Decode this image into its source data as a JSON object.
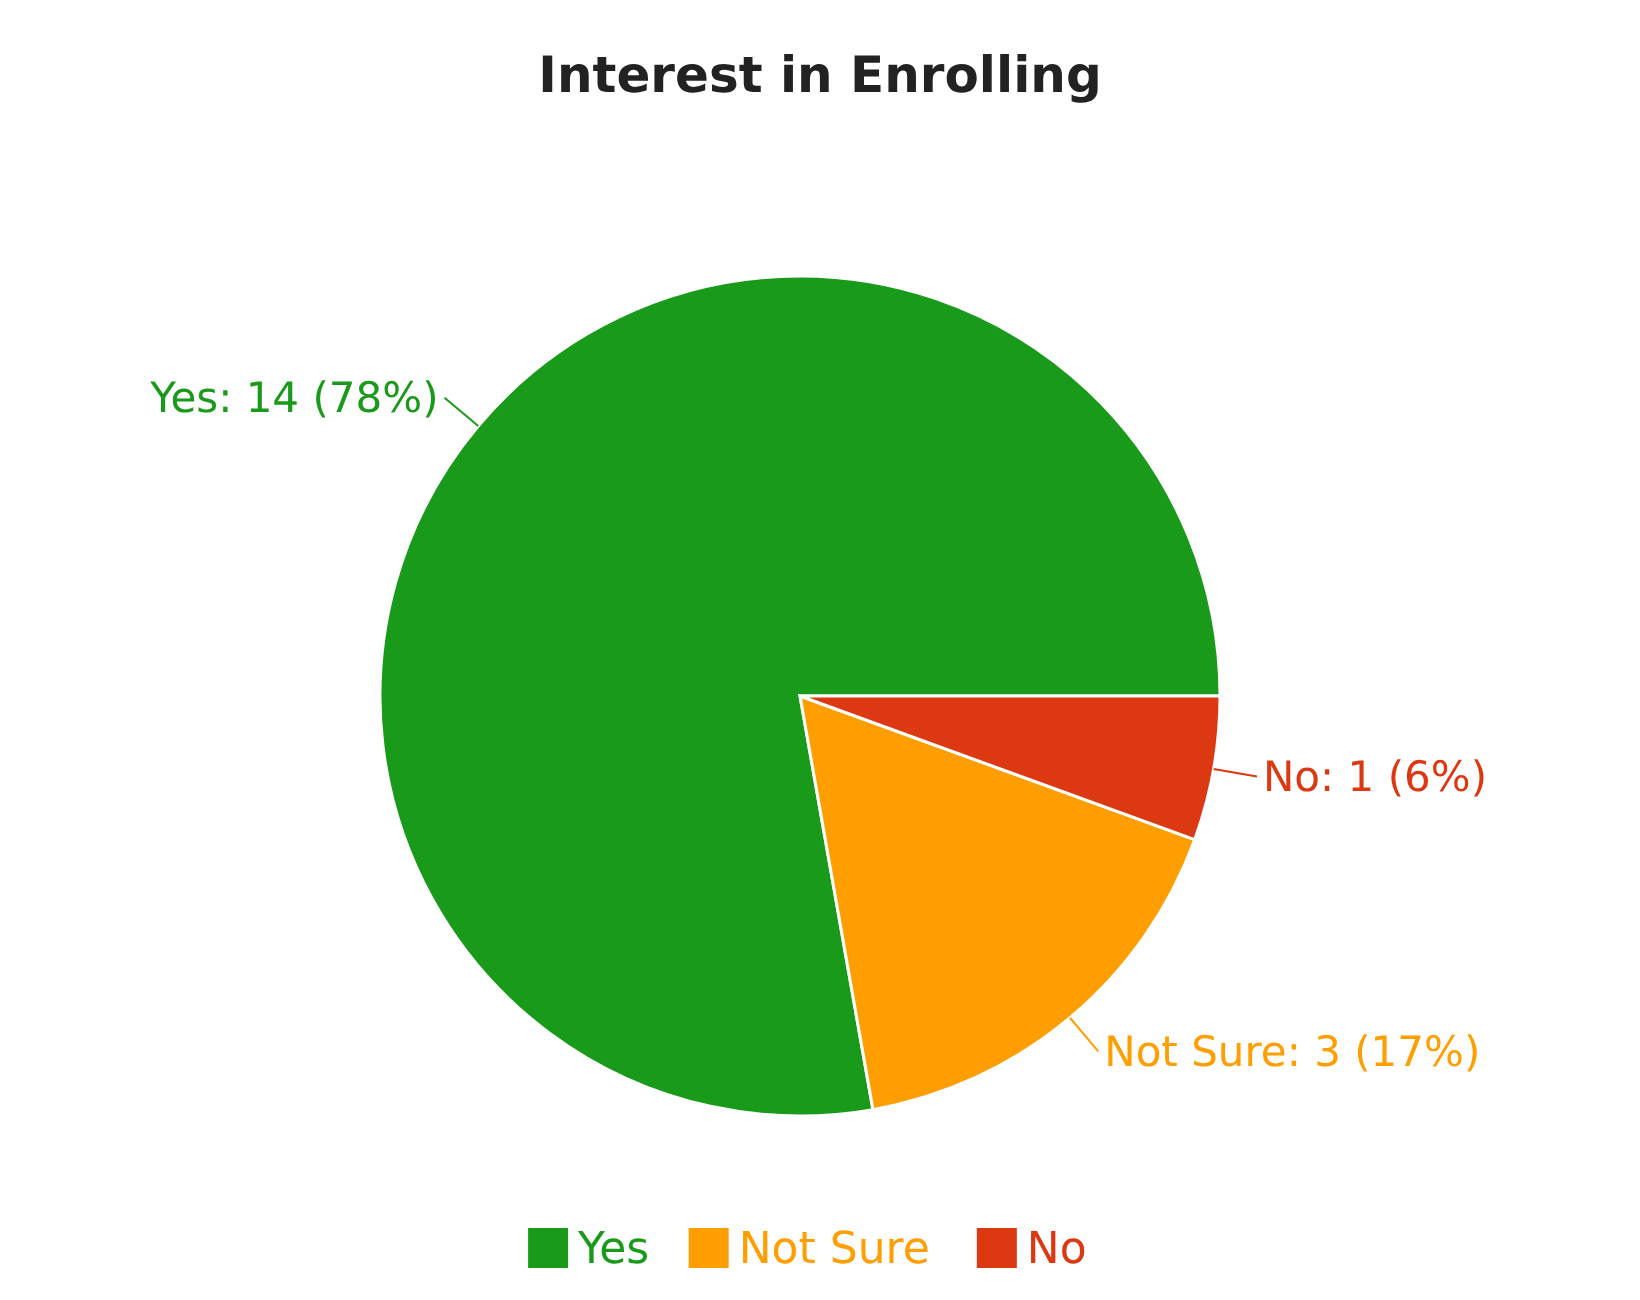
{
  "chart_data": {
    "type": "pie",
    "title": "Interest in Enrolling",
    "categories": [
      "Yes",
      "Not Sure",
      "No"
    ],
    "values": [
      14,
      3,
      1
    ],
    "colors": [
      "#1a9a1a",
      "#ff9e00",
      "#dc3912"
    ],
    "value_labels": [
      "Yes: 14 (78%)",
      "Not Sure: 3 (17%)",
      "No: 1 (6%)"
    ],
    "legend": "bottom"
  }
}
